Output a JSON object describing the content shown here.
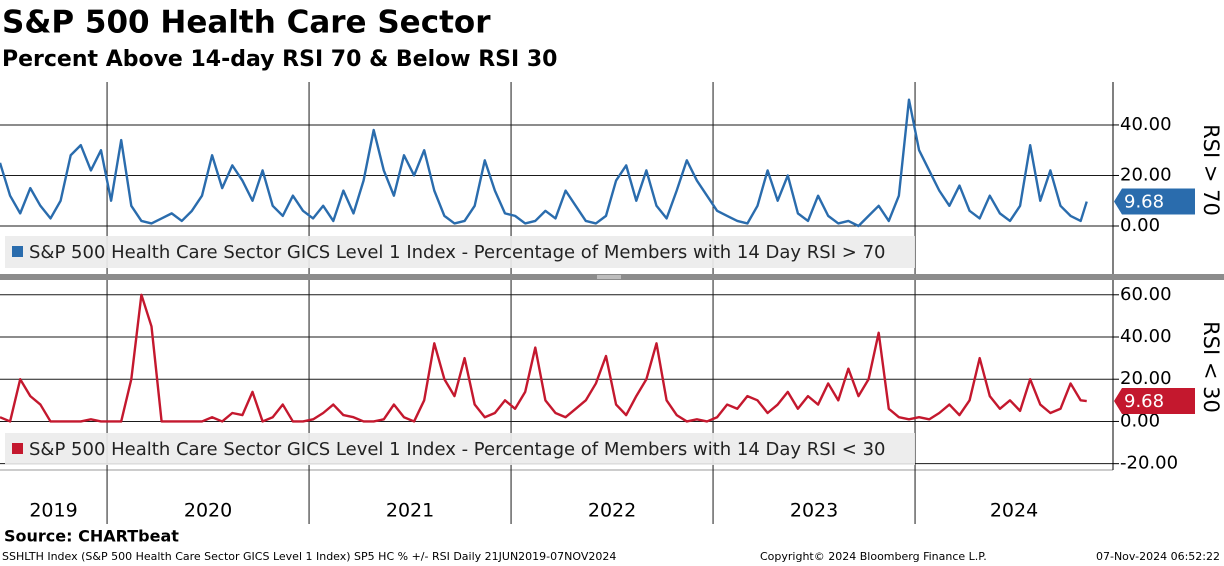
{
  "chart_data": [
    {
      "type": "line",
      "title": "S&P 500 Health Care Sector",
      "subtitle": "Percent Above 14-day RSI 70 & Below RSI 30",
      "ylabel": "RSI > 70",
      "xlim": [
        2019.47,
        2024.98
      ],
      "xticks": [
        2020,
        2021,
        2022,
        2023,
        2024
      ],
      "ylim": [
        -19,
        57
      ],
      "yticks": [
        {
          "value": 0,
          "label": "0.00"
        },
        {
          "value": 20,
          "label": "20.00"
        },
        {
          "value": 40,
          "label": "40.00"
        }
      ],
      "grid": true,
      "x": [
        2019.47,
        2019.52,
        2019.57,
        2019.62,
        2019.67,
        2019.72,
        2019.77,
        2019.82,
        2019.87,
        2019.92,
        2019.97,
        2020.02,
        2020.07,
        2020.12,
        2020.17,
        2020.22,
        2020.27,
        2020.32,
        2020.37,
        2020.42,
        2020.47,
        2020.52,
        2020.57,
        2020.62,
        2020.67,
        2020.72,
        2020.77,
        2020.82,
        2020.87,
        2020.92,
        2020.97,
        2021.02,
        2021.07,
        2021.12,
        2021.17,
        2021.22,
        2021.27,
        2021.32,
        2021.37,
        2021.42,
        2021.47,
        2021.52,
        2021.57,
        2021.62,
        2021.67,
        2021.72,
        2021.77,
        2021.82,
        2021.87,
        2021.92,
        2021.97,
        2022.02,
        2022.07,
        2022.12,
        2022.17,
        2022.22,
        2022.27,
        2022.32,
        2022.37,
        2022.42,
        2022.47,
        2022.52,
        2022.57,
        2022.62,
        2022.67,
        2022.72,
        2022.77,
        2022.82,
        2022.87,
        2022.92,
        2022.97,
        2023.02,
        2023.07,
        2023.12,
        2023.17,
        2023.22,
        2023.27,
        2023.32,
        2023.37,
        2023.42,
        2023.47,
        2023.52,
        2023.57,
        2023.62,
        2023.67,
        2023.72,
        2023.77,
        2023.82,
        2023.87,
        2023.92,
        2023.97,
        2024.02,
        2024.07,
        2024.12,
        2024.17,
        2024.22,
        2024.27,
        2024.32,
        2024.37,
        2024.42,
        2024.47,
        2024.52,
        2024.57,
        2024.62,
        2024.67,
        2024.72,
        2024.77,
        2024.82,
        2024.85
      ],
      "series": [
        {
          "name": "S&P 500 Health Care Sector GICS Level 1 Index - Percentage of Members with 14 Day RSI > 70",
          "color": "#2a6cad",
          "values": [
            25,
            12,
            5,
            15,
            8,
            3,
            10,
            28,
            32,
            22,
            30,
            10,
            34,
            8,
            2,
            1,
            3,
            5,
            2,
            6,
            12,
            28,
            15,
            24,
            18,
            10,
            22,
            8,
            4,
            12,
            6,
            3,
            8,
            2,
            14,
            5,
            18,
            38,
            22,
            12,
            28,
            20,
            30,
            14,
            4,
            1,
            2,
            8,
            26,
            14,
            5,
            4,
            1,
            2,
            6,
            3,
            14,
            8,
            2,
            1,
            4,
            18,
            24,
            10,
            22,
            8,
            3,
            14,
            26,
            18,
            12,
            6,
            4,
            2,
            1,
            8,
            22,
            10,
            20,
            5,
            2,
            12,
            4,
            1,
            2,
            0,
            4,
            8,
            2,
            12,
            50,
            30,
            22,
            14,
            8,
            16,
            6,
            3,
            12,
            5,
            2,
            8,
            32,
            10,
            22,
            8,
            4,
            2,
            9.68
          ]
        }
      ]
    },
    {
      "type": "line",
      "ylabel": "RSI < 30",
      "xlim": [
        2019.47,
        2024.98
      ],
      "xticks": [
        {
          "value": 2019,
          "label": "2019"
        },
        {
          "value": 2020,
          "label": "2020"
        },
        {
          "value": 2021,
          "label": "2021"
        },
        {
          "value": 2022,
          "label": "2022"
        },
        {
          "value": 2023,
          "label": "2023"
        },
        {
          "value": 2024,
          "label": "2024"
        }
      ],
      "ylim": [
        -23,
        67
      ],
      "yticks": [
        {
          "value": -20,
          "label": "-20.00"
        },
        {
          "value": 0,
          "label": "0.00"
        },
        {
          "value": 20,
          "label": "20.00"
        },
        {
          "value": 40,
          "label": "40.00"
        },
        {
          "value": 60,
          "label": "60.00"
        }
      ],
      "grid": true,
      "x": [
        2019.47,
        2019.52,
        2019.57,
        2019.62,
        2019.67,
        2019.72,
        2019.77,
        2019.82,
        2019.87,
        2019.92,
        2019.97,
        2020.02,
        2020.07,
        2020.12,
        2020.17,
        2020.22,
        2020.27,
        2020.32,
        2020.37,
        2020.42,
        2020.47,
        2020.52,
        2020.57,
        2020.62,
        2020.67,
        2020.72,
        2020.77,
        2020.82,
        2020.87,
        2020.92,
        2020.97,
        2021.02,
        2021.07,
        2021.12,
        2021.17,
        2021.22,
        2021.27,
        2021.32,
        2021.37,
        2021.42,
        2021.47,
        2021.52,
        2021.57,
        2021.62,
        2021.67,
        2021.72,
        2021.77,
        2021.82,
        2021.87,
        2021.92,
        2021.97,
        2022.02,
        2022.07,
        2022.12,
        2022.17,
        2022.22,
        2022.27,
        2022.32,
        2022.37,
        2022.42,
        2022.47,
        2022.52,
        2022.57,
        2022.62,
        2022.67,
        2022.72,
        2022.77,
        2022.82,
        2022.87,
        2022.92,
        2022.97,
        2023.02,
        2023.07,
        2023.12,
        2023.17,
        2023.22,
        2023.27,
        2023.32,
        2023.37,
        2023.42,
        2023.47,
        2023.52,
        2023.57,
        2023.62,
        2023.67,
        2023.72,
        2023.77,
        2023.82,
        2023.87,
        2023.92,
        2023.97,
        2024.02,
        2024.07,
        2024.12,
        2024.17,
        2024.22,
        2024.27,
        2024.32,
        2024.37,
        2024.42,
        2024.47,
        2024.52,
        2024.57,
        2024.62,
        2024.67,
        2024.72,
        2024.77,
        2024.82,
        2024.85
      ],
      "series": [
        {
          "name": "S&P 500 Health Care Sector GICS Level 1 Index - Percentage of Members with 14 Day RSI < 30",
          "color": "#c4182e",
          "values": [
            2,
            0,
            20,
            12,
            8,
            0,
            0,
            0,
            0,
            1,
            0,
            0,
            0,
            20,
            60,
            45,
            0,
            0,
            0,
            0,
            0,
            2,
            0,
            4,
            3,
            14,
            0,
            2,
            8,
            0,
            0,
            1,
            4,
            8,
            3,
            2,
            0,
            0,
            1,
            8,
            2,
            0,
            10,
            37,
            20,
            12,
            30,
            8,
            2,
            4,
            10,
            6,
            14,
            35,
            10,
            4,
            2,
            6,
            10,
            18,
            31,
            8,
            3,
            12,
            20,
            37,
            10,
            3,
            0,
            1,
            0,
            2,
            8,
            6,
            12,
            10,
            4,
            8,
            14,
            6,
            12,
            8,
            18,
            10,
            25,
            12,
            20,
            42,
            6,
            2,
            1,
            2,
            1,
            4,
            8,
            3,
            10,
            30,
            12,
            6,
            10,
            5,
            20,
            8,
            4,
            6,
            18,
            10,
            9.68
          ]
        }
      ]
    }
  ],
  "footer": {
    "source": "Source: CHARTbeat",
    "description": "SSHLTH Index (S&P 500 Health Care Sector GICS Level 1 Index) SP5 HC % +/- RSI  Daily 21JUN2019-07NOV2024",
    "copyright": "Copyright© 2024 Bloomberg Finance L.P.",
    "timestamp": "07-Nov-2024 06:52:22"
  }
}
